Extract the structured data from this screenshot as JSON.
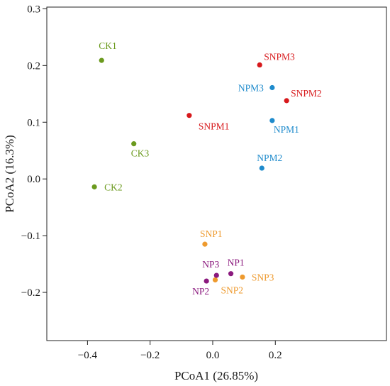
{
  "chart_data": {
    "type": "scatter",
    "title": "",
    "xlabel": "PCoA1 (26.85%)",
    "ylabel": "PCoA2  (16.3%)",
    "xlim": [
      -0.53,
      0.555
    ],
    "ylim": [
      -0.285,
      0.303
    ],
    "x_ticks": [
      -0.4,
      -0.2,
      0.0,
      0.2
    ],
    "x_tick_labels": [
      "−0.4",
      "−0.2",
      "0.0",
      "0.2"
    ],
    "y_ticks": [
      -0.2,
      -0.1,
      0.0,
      0.1,
      0.2,
      0.3
    ],
    "y_tick_labels": [
      "−0.2",
      "−0.1",
      "0.0",
      "0.1",
      "0.2",
      "0.3"
    ],
    "grid": false,
    "legend": "none",
    "colors": {
      "CK": "#6b9a1e",
      "SNPM": "#d7191c",
      "NPM": "#1f8bcc",
      "SNP": "#ee9a2e",
      "NP": "#8b1a7e"
    },
    "points": [
      {
        "label": "CK1",
        "group": "CK",
        "x": -0.355,
        "y": 0.209,
        "anchor": "start",
        "dx": -4,
        "dy": -16
      },
      {
        "label": "CK3",
        "group": "CK",
        "x": -0.252,
        "y": 0.062,
        "anchor": "start",
        "dx": -4,
        "dy": 18
      },
      {
        "label": "CK2",
        "group": "CK",
        "x": -0.378,
        "y": -0.014,
        "anchor": "start",
        "dx": 14,
        "dy": 5
      },
      {
        "label": "SNPM3",
        "group": "SNPM",
        "x": 0.15,
        "y": 0.201,
        "anchor": "start",
        "dx": 6,
        "dy": -7
      },
      {
        "label": "SNPM2",
        "group": "SNPM",
        "x": 0.236,
        "y": 0.138,
        "anchor": "start",
        "dx": 6,
        "dy": -6
      },
      {
        "label": "SNPM1",
        "group": "SNPM",
        "x": -0.075,
        "y": 0.112,
        "anchor": "start",
        "dx": 13,
        "dy": 20
      },
      {
        "label": "NPM3",
        "group": "NPM",
        "x": 0.19,
        "y": 0.161,
        "anchor": "end",
        "dx": -12,
        "dy": 5
      },
      {
        "label": "NPM1",
        "group": "NPM",
        "x": 0.19,
        "y": 0.103,
        "anchor": "start",
        "dx": 2,
        "dy": 17
      },
      {
        "label": "NPM2",
        "group": "NPM",
        "x": 0.157,
        "y": 0.019,
        "anchor": "start",
        "dx": -7,
        "dy": -10
      },
      {
        "label": "SNP1",
        "group": "SNP",
        "x": -0.025,
        "y": -0.115,
        "anchor": "start",
        "dx": -7,
        "dy": -10
      },
      {
        "label": "SNP3",
        "group": "SNP",
        "x": 0.095,
        "y": -0.173,
        "anchor": "start",
        "dx": 13,
        "dy": 5
      },
      {
        "label": "SNP2",
        "group": "SNP",
        "x": 0.008,
        "y": -0.178,
        "anchor": "start",
        "dx": 8,
        "dy": 19
      },
      {
        "label": "NP1",
        "group": "NP",
        "x": 0.058,
        "y": -0.167,
        "anchor": "start",
        "dx": -5,
        "dy": -11
      },
      {
        "label": "NP3",
        "group": "NP",
        "x": 0.012,
        "y": -0.17,
        "anchor": "end",
        "dx": 4,
        "dy": -11
      },
      {
        "label": "NP2",
        "group": "NP",
        "x": -0.02,
        "y": -0.18,
        "anchor": "end",
        "dx": 4,
        "dy": 19
      }
    ]
  }
}
